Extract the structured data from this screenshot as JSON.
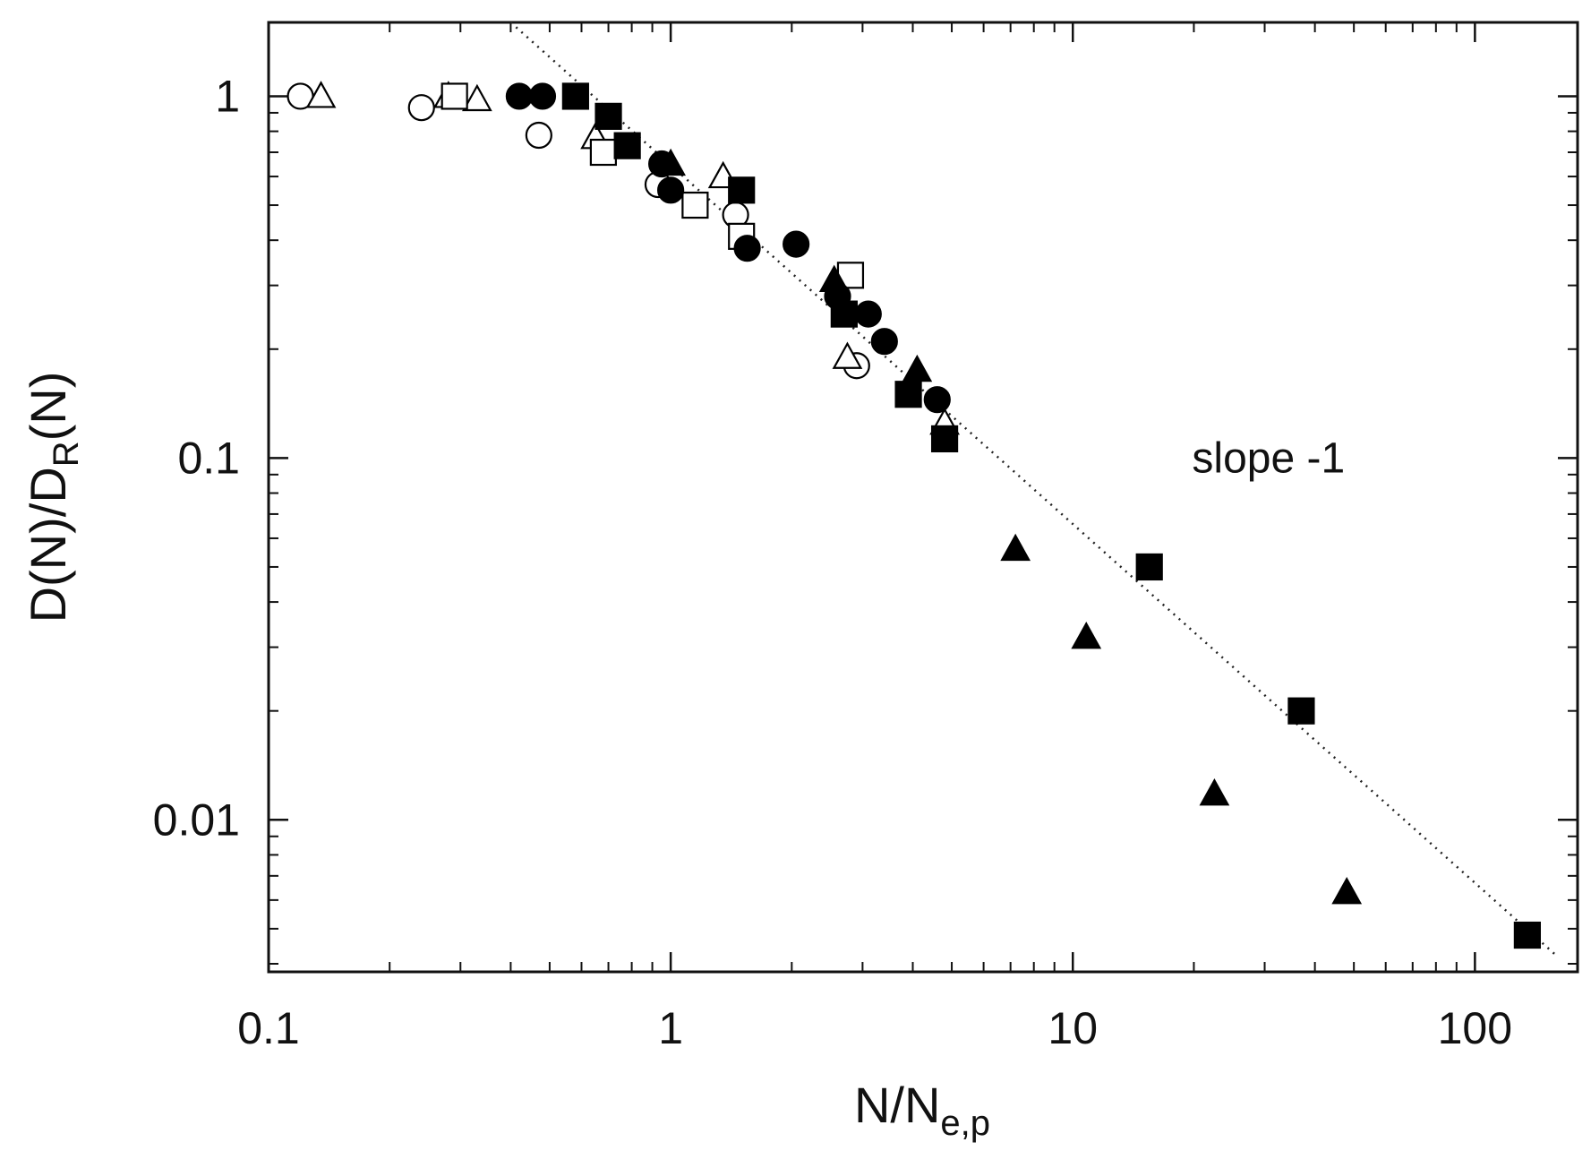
{
  "chart_data": {
    "type": "scatter",
    "xlabel": "N/N",
    "xlabel_sub": "e,p",
    "ylabel_parts": [
      "D(N)/D",
      "R",
      "(N)"
    ],
    "x_scale": "log",
    "y_scale": "log",
    "xlim": [
      0.1,
      180
    ],
    "ylim": [
      0.0038,
      1.6
    ],
    "x_ticks": [
      {
        "value": 0.1,
        "label": "0.1"
      },
      {
        "value": 1,
        "label": "1"
      },
      {
        "value": 10,
        "label": "10"
      },
      {
        "value": 100,
        "label": "100"
      }
    ],
    "y_ticks": [
      {
        "value": 0.01,
        "label": "0.01"
      },
      {
        "value": 0.1,
        "label": "0.1"
      },
      {
        "value": 1,
        "label": "1"
      }
    ],
    "grid": false,
    "legend": false,
    "annotation": {
      "text": "slope  -1",
      "x": 20,
      "y": 0.1
    },
    "reference_line": {
      "style": "dotted",
      "slope": -1,
      "x": [
        0.4,
        160
      ],
      "y": [
        1.6,
        0.0042
      ]
    },
    "series": [
      {
        "marker": "circle-open",
        "points": [
          [
            0.12,
            1.0
          ],
          [
            0.24,
            0.93
          ],
          [
            0.47,
            0.78
          ],
          [
            0.93,
            0.57
          ],
          [
            1.45,
            0.47
          ],
          [
            2.9,
            0.18
          ]
        ]
      },
      {
        "marker": "triangle-open",
        "points": [
          [
            0.135,
            1.0
          ],
          [
            0.28,
            1.0
          ],
          [
            0.33,
            0.98
          ],
          [
            0.65,
            0.77
          ],
          [
            1.35,
            0.6
          ],
          [
            2.75,
            0.19
          ],
          [
            4.8,
            0.125
          ]
        ]
      },
      {
        "marker": "square-open",
        "points": [
          [
            0.29,
            1.0
          ],
          [
            0.68,
            0.7
          ],
          [
            1.15,
            0.5
          ],
          [
            1.5,
            0.41
          ],
          [
            2.8,
            0.32
          ]
        ]
      },
      {
        "marker": "circle-filled",
        "points": [
          [
            0.42,
            1.0
          ],
          [
            0.48,
            1.0
          ],
          [
            0.95,
            0.65
          ],
          [
            1.0,
            0.55
          ],
          [
            1.55,
            0.38
          ],
          [
            2.05,
            0.39
          ],
          [
            2.6,
            0.28
          ],
          [
            3.1,
            0.25
          ],
          [
            3.4,
            0.21
          ],
          [
            4.6,
            0.145
          ]
        ]
      },
      {
        "marker": "square-filled",
        "points": [
          [
            0.58,
            1.0
          ],
          [
            0.7,
            0.88
          ],
          [
            0.78,
            0.73
          ],
          [
            1.5,
            0.55
          ],
          [
            2.7,
            0.25
          ],
          [
            3.9,
            0.15
          ],
          [
            4.8,
            0.113
          ],
          [
            15.5,
            0.05
          ],
          [
            37,
            0.02
          ],
          [
            135,
            0.0048
          ]
        ]
      },
      {
        "marker": "triangle-filled",
        "points": [
          [
            1.0,
            0.65
          ],
          [
            2.55,
            0.31
          ],
          [
            4.1,
            0.175
          ],
          [
            7.2,
            0.056
          ],
          [
            10.8,
            0.032
          ],
          [
            22.5,
            0.0118
          ],
          [
            48,
            0.0063
          ]
        ]
      }
    ]
  }
}
